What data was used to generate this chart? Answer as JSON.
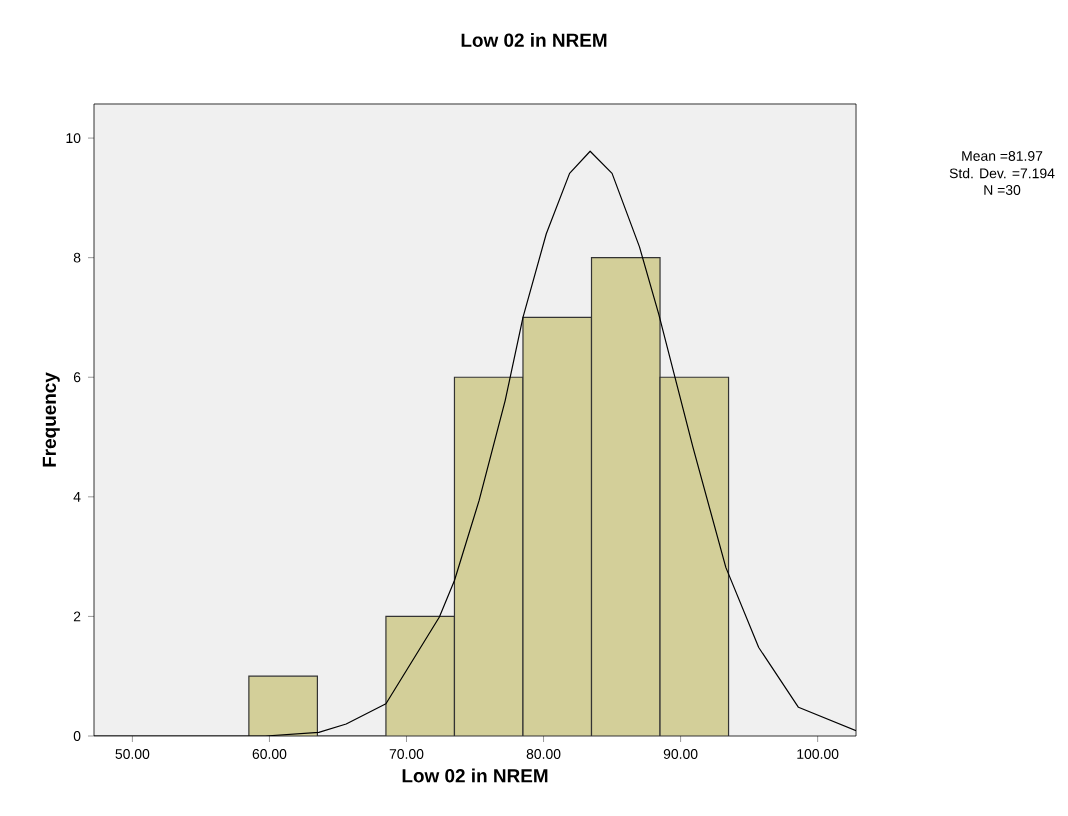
{
  "chart_data": {
    "type": "histogram",
    "title": "Low 02 in NREM",
    "xlabel": "Low 02 in NREM",
    "ylabel": "Frequency",
    "annotations": [
      "Mean =81.97",
      "Std. Dev. =7.194",
      "N =30"
    ],
    "bins": [
      58.5,
      63.5,
      68.5,
      73.5,
      78.5,
      83.5,
      88.5,
      93.5
    ],
    "values": [
      1,
      0,
      2,
      6,
      7,
      8,
      6
    ],
    "color": "#d3cf99",
    "series": [
      {
        "type": "line",
        "color": "#000000",
        "x": [
          47.2,
          59.7,
          63.6,
          65.6,
          68.5,
          72.4,
          73.5,
          75.3,
          77.2,
          78.5,
          80.2,
          81.9,
          83.4,
          85.0,
          87.0,
          88.4,
          90.9,
          93.3,
          95.7,
          98.6,
          102.8
        ],
        "values": [
          0,
          0,
          0.06,
          0.2,
          0.54,
          1.99,
          2.6,
          3.94,
          5.61,
          7.0,
          8.4,
          9.41,
          9.78,
          9.41,
          8.18,
          7.06,
          4.83,
          2.82,
          1.48,
          0.48,
          0.09
        ]
      }
    ],
    "xlim": [
      47.2,
      102.8
    ],
    "ylim": [
      0,
      10.57
    ],
    "xticks": [
      {
        "value": 50,
        "label": "50.00"
      },
      {
        "value": 60,
        "label": "60.00"
      },
      {
        "value": 70,
        "label": "70.00"
      },
      {
        "value": 80,
        "label": "80.00"
      },
      {
        "value": 90,
        "label": "90.00"
      },
      {
        "value": 100,
        "label": "100.00"
      }
    ],
    "yticks": [
      0,
      2,
      4,
      6,
      8,
      10
    ]
  }
}
